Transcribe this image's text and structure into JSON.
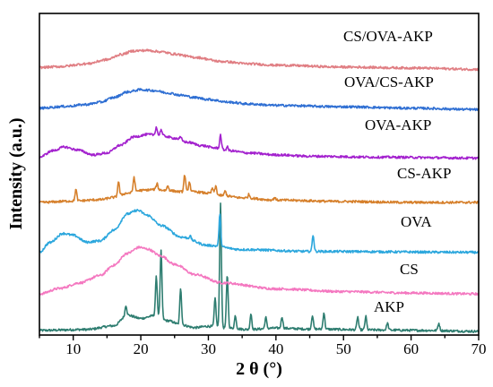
{
  "chart_data": {
    "type": "line",
    "xlabel": "2 θ (°)",
    "ylabel": "Intensity (a.u.)",
    "xlim": [
      5,
      70
    ],
    "xticks": [
      10,
      20,
      30,
      40,
      50,
      60,
      70
    ],
    "grid": false,
    "legend": "labels placed next to each curve on the right",
    "series": [
      {
        "name": "AKP",
        "color": "#2E7D70",
        "baseline": 1.0,
        "points": [
          [
            5,
            0
          ],
          [
            12,
            0.2
          ],
          [
            16,
            1
          ],
          [
            18,
            3.3
          ],
          [
            20,
            2.6
          ],
          [
            22,
            3.2
          ],
          [
            24,
            2.1
          ],
          [
            26,
            1.2
          ],
          [
            28,
            0.6
          ],
          [
            30,
            0.9
          ],
          [
            33,
            0.5
          ],
          [
            36,
            0.2
          ],
          [
            40,
            0.5
          ],
          [
            45,
            0.3
          ],
          [
            55,
            0.1
          ],
          [
            62,
            0
          ],
          [
            70,
            -0.2
          ]
        ],
        "peaks": [
          [
            17.8,
            2.2
          ],
          [
            22.3,
            8.5
          ],
          [
            23.0,
            14.5
          ],
          [
            25.9,
            8.0
          ],
          [
            31.0,
            6.2
          ],
          [
            31.8,
            26.8
          ],
          [
            32.8,
            11.5
          ],
          [
            34.0,
            2.8
          ],
          [
            36.3,
            3.4
          ],
          [
            38.5,
            2.4
          ],
          [
            40.9,
            2.5
          ],
          [
            45.4,
            3.0
          ],
          [
            47.1,
            3.6
          ],
          [
            52.1,
            2.8
          ],
          [
            53.3,
            2.9
          ],
          [
            56.5,
            1.5
          ],
          [
            64.1,
            1.6
          ]
        ]
      },
      {
        "name": "CS",
        "color": "#F478C0",
        "baseline": 8.9,
        "points": [
          [
            5,
            0
          ],
          [
            8,
            1.2
          ],
          [
            11,
            2.4
          ],
          [
            14,
            4
          ],
          [
            16,
            6.2
          ],
          [
            18,
            8.8
          ],
          [
            19.8,
            10.1
          ],
          [
            21,
            9.7
          ],
          [
            23,
            8.2
          ],
          [
            25,
            6.4
          ],
          [
            28,
            4.2
          ],
          [
            32,
            2.4
          ],
          [
            40,
            1.1
          ],
          [
            50,
            0.5
          ],
          [
            60,
            0.2
          ],
          [
            70,
            0
          ]
        ],
        "peaks": []
      },
      {
        "name": "OVA",
        "color": "#2CA7DD",
        "baseline": 17.9,
        "points": [
          [
            5,
            0
          ],
          [
            6.5,
            2.1
          ],
          [
            8.5,
            4.1
          ],
          [
            10,
            3.7
          ],
          [
            12,
            2.2
          ],
          [
            14,
            2.5
          ],
          [
            16,
            4.8
          ],
          [
            18,
            8.3
          ],
          [
            19.5,
            9.1
          ],
          [
            21,
            8
          ],
          [
            23,
            5.8
          ],
          [
            26,
            3.3
          ],
          [
            30,
            1.5
          ],
          [
            35,
            0.6
          ],
          [
            45,
            0.2
          ],
          [
            70,
            0
          ]
        ],
        "peaks": [
          [
            27.3,
            0.7
          ],
          [
            31.7,
            6.9
          ],
          [
            45.5,
            3.6
          ]
        ]
      },
      {
        "name": "CS-AKP",
        "color": "#D6802C",
        "baseline": 28.7,
        "points": [
          [
            5,
            0
          ],
          [
            10,
            0.3
          ],
          [
            14,
            0.6
          ],
          [
            16,
            1.1
          ],
          [
            18,
            2
          ],
          [
            20,
            2.6
          ],
          [
            22,
            2.8
          ],
          [
            24,
            2.6
          ],
          [
            26,
            2.3
          ],
          [
            28,
            2.3
          ],
          [
            30,
            2
          ],
          [
            32,
            1.5
          ],
          [
            35,
            1
          ],
          [
            40,
            0.5
          ],
          [
            50,
            0.2
          ],
          [
            60,
            0
          ],
          [
            70,
            0
          ]
        ],
        "peaks": [
          [
            10.4,
            2.5
          ],
          [
            16.7,
            3.2
          ],
          [
            19.0,
            3.2
          ],
          [
            22.4,
            1.3
          ],
          [
            24.0,
            1.0
          ],
          [
            26.5,
            3.7
          ],
          [
            27.2,
            2.2
          ],
          [
            30.6,
            1.2
          ],
          [
            31.1,
            1.8
          ],
          [
            32.5,
            1.0
          ],
          [
            36.0,
            0.8
          ],
          [
            39.8,
            0.6
          ]
        ]
      },
      {
        "name": "OVA-AKP",
        "color": "#A321CE",
        "baseline": 38.5,
        "points": [
          [
            5,
            0
          ],
          [
            7,
            1.4
          ],
          [
            8.7,
            2.2
          ],
          [
            10.5,
            1.6
          ],
          [
            13,
            0.5
          ],
          [
            15,
            0.9
          ],
          [
            17,
            2.6
          ],
          [
            19,
            4.4
          ],
          [
            21,
            4.9
          ],
          [
            23,
            4.7
          ],
          [
            25,
            4.1
          ],
          [
            27,
            3.2
          ],
          [
            29,
            2.5
          ],
          [
            31,
            2
          ],
          [
            33,
            1.4
          ],
          [
            36,
            0.9
          ],
          [
            40,
            0.5
          ],
          [
            45,
            0.2
          ],
          [
            55,
            0
          ],
          [
            70,
            -0.2
          ]
        ],
        "peaks": [
          [
            22.3,
            1.8
          ],
          [
            23.0,
            1.3
          ],
          [
            25.9,
            0.6
          ],
          [
            31.8,
            3.0
          ],
          [
            32.8,
            0.8
          ]
        ]
      },
      {
        "name": "OVA/CS-AKP",
        "color": "#2F6FD3",
        "baseline": 49.1,
        "points": [
          [
            5,
            0
          ],
          [
            9,
            0.4
          ],
          [
            12,
            0.8
          ],
          [
            14,
            1.3
          ],
          [
            16,
            2.3
          ],
          [
            18,
            3.5
          ],
          [
            20,
            4
          ],
          [
            22,
            3.8
          ],
          [
            24,
            3.3
          ],
          [
            26,
            2.8
          ],
          [
            28,
            2.3
          ],
          [
            30,
            1.9
          ],
          [
            33,
            1.3
          ],
          [
            36,
            0.9
          ],
          [
            40,
            0.6
          ],
          [
            50,
            0.3
          ],
          [
            60,
            0
          ],
          [
            70,
            -0.3
          ]
        ],
        "peaks": []
      },
      {
        "name": "CS/OVA-AKP",
        "color": "#E07E83",
        "baseline": 57.9,
        "points": [
          [
            5,
            0
          ],
          [
            8,
            0.2
          ],
          [
            12,
            0.8
          ],
          [
            15,
            1.7
          ],
          [
            17,
            2.8
          ],
          [
            19,
            3.6
          ],
          [
            21,
            3.7
          ],
          [
            23,
            3.4
          ],
          [
            25,
            2.9
          ],
          [
            28,
            2.2
          ],
          [
            32,
            1.3
          ],
          [
            36,
            0.8
          ],
          [
            40,
            0.5
          ],
          [
            50,
            0.1
          ],
          [
            60,
            -0.1
          ],
          [
            70,
            -0.4
          ]
        ],
        "peaks": []
      }
    ]
  }
}
